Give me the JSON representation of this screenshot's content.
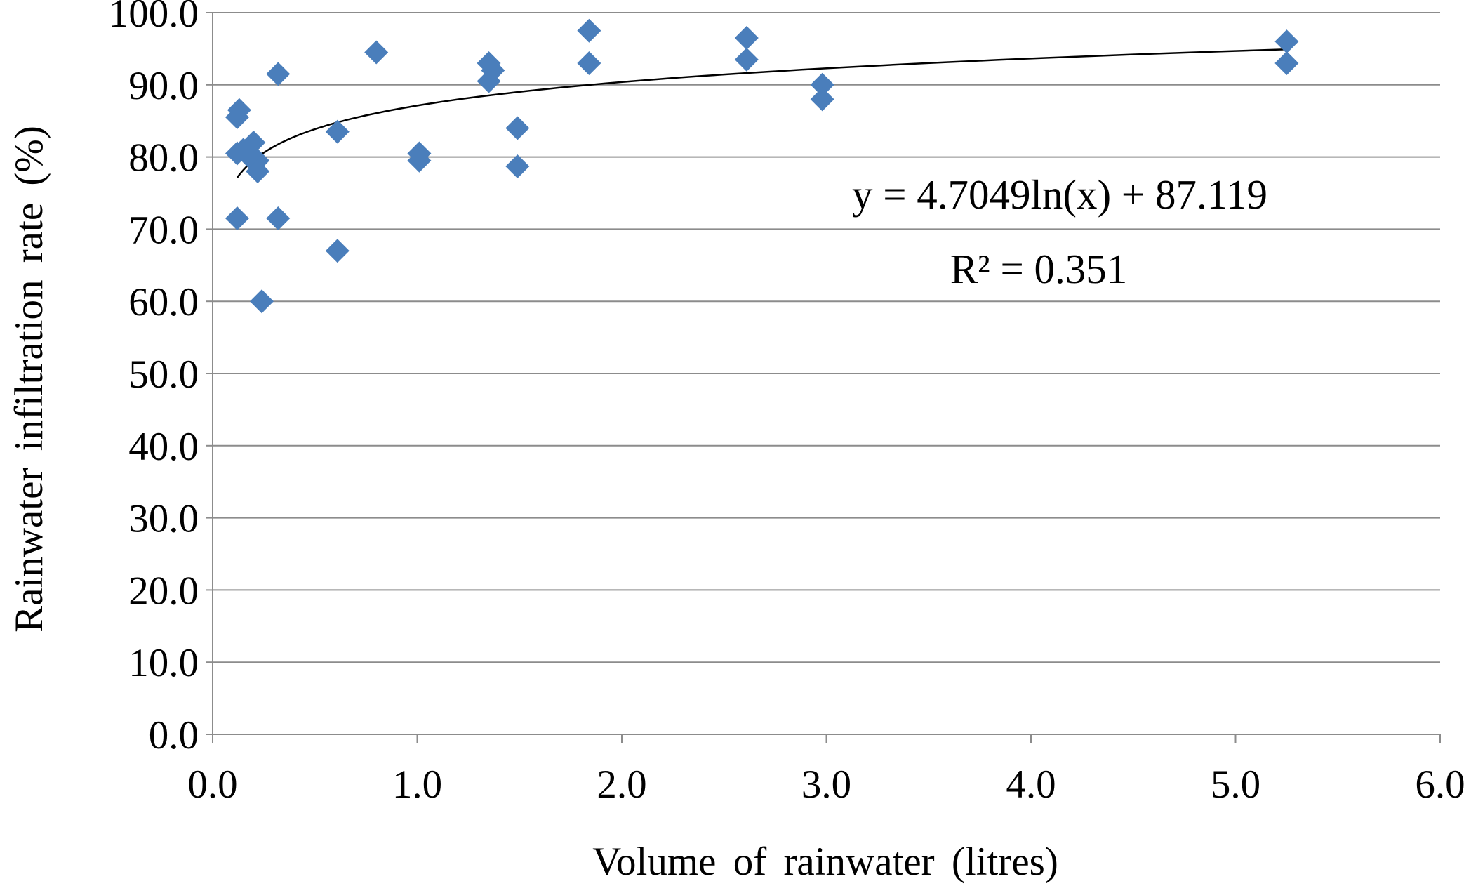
{
  "chart_data": {
    "type": "scatter",
    "title": "",
    "xlabel": "Volume  of rainwater  (litres)",
    "ylabel": "Rainwater  infiltration  rate  (%)",
    "xlim": [
      0,
      6
    ],
    "ylim": [
      0,
      100
    ],
    "x_ticks": [
      "0.0",
      "1.0",
      "2.0",
      "3.0",
      "4.0",
      "5.0",
      "6.0"
    ],
    "y_ticks": [
      "0.0",
      "10.0",
      "20.0",
      "30.0",
      "40.0",
      "50.0",
      "60.0",
      "70.0",
      "80.0",
      "90.0",
      "100.0"
    ],
    "grid": "horizontal",
    "legend": "none",
    "marker": "diamond",
    "marker_color": "#4a7ebb",
    "series": [
      {
        "name": "Rainwater infiltration rate",
        "points": [
          {
            "x": 0.12,
            "y": 85.5
          },
          {
            "x": 0.13,
            "y": 86.5
          },
          {
            "x": 0.12,
            "y": 80.5
          },
          {
            "x": 0.15,
            "y": 81.0
          },
          {
            "x": 0.18,
            "y": 80.0
          },
          {
            "x": 0.12,
            "y": 71.5
          },
          {
            "x": 0.2,
            "y": 82.0
          },
          {
            "x": 0.22,
            "y": 79.5
          },
          {
            "x": 0.22,
            "y": 78.0
          },
          {
            "x": 0.24,
            "y": 60.0
          },
          {
            "x": 0.32,
            "y": 91.5
          },
          {
            "x": 0.32,
            "y": 71.5
          },
          {
            "x": 0.61,
            "y": 83.5
          },
          {
            "x": 0.61,
            "y": 67.0
          },
          {
            "x": 0.8,
            "y": 94.5
          },
          {
            "x": 1.01,
            "y": 80.5
          },
          {
            "x": 1.01,
            "y": 79.5
          },
          {
            "x": 1.35,
            "y": 93.0
          },
          {
            "x": 1.37,
            "y": 92.0
          },
          {
            "x": 1.35,
            "y": 90.5
          },
          {
            "x": 1.49,
            "y": 84.0
          },
          {
            "x": 1.49,
            "y": 78.7
          },
          {
            "x": 1.84,
            "y": 97.5
          },
          {
            "x": 1.84,
            "y": 93.0
          },
          {
            "x": 2.61,
            "y": 96.5
          },
          {
            "x": 2.61,
            "y": 93.5
          },
          {
            "x": 2.98,
            "y": 90.0
          },
          {
            "x": 2.98,
            "y": 88.0
          },
          {
            "x": 5.25,
            "y": 96.0
          },
          {
            "x": 5.25,
            "y": 93.0
          }
        ]
      }
    ],
    "trendline": {
      "type": "logarithmic",
      "a": 4.7049,
      "b": 87.119,
      "x_range": [
        0.12,
        5.25
      ],
      "color": "#000000"
    },
    "annotations": {
      "equation": "y = 4.7049ln(x) + 87.119",
      "r_squared": "R² = 0.351"
    }
  }
}
